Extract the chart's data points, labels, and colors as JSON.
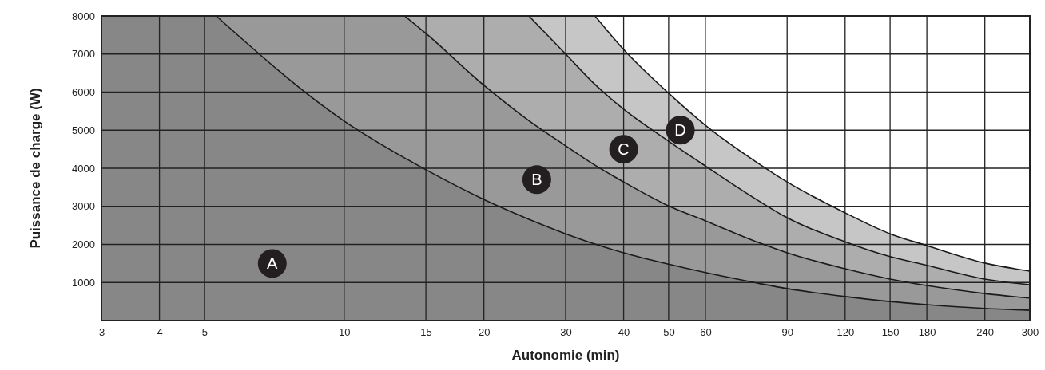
{
  "chart_data": {
    "type": "area",
    "xlabel": "Autonomie (min)",
    "ylabel": "Puissance de charge (W)",
    "log": "x",
    "grid": true,
    "xlim": [
      3,
      300
    ],
    "xticks": [
      3,
      4,
      5,
      10,
      15,
      20,
      30,
      40,
      50,
      60,
      90,
      120,
      150,
      180,
      240,
      300
    ],
    "ylim": [
      0,
      8000
    ],
    "yticks": [
      {
        "value": 0,
        "label": null
      },
      1000,
      2000,
      3000,
      4000,
      5000,
      6000,
      7000,
      8000
    ],
    "x": [
      3,
      5.3,
      10,
      13.5,
      15,
      20,
      25,
      30,
      34.7,
      40,
      50,
      60,
      78,
      90,
      120,
      150,
      180,
      240,
      300
    ],
    "series": [
      {
        "color": "#c6c6c6",
        "values": [
          8000,
          8000,
          8000,
          8000,
          8000,
          8000,
          8000,
          8000,
          8000,
          7120,
          5970,
          5130,
          4130,
          3640,
          2830,
          2280,
          1970,
          1510,
          1300
        ]
      },
      {
        "color": "#adadad",
        "values": [
          8000,
          8000,
          8000,
          8000,
          8000,
          8000,
          8000,
          7000,
          6200,
          5550,
          4710,
          4060,
          3150,
          2700,
          2070,
          1680,
          1450,
          1090,
          940
        ]
      },
      {
        "color": "#999999",
        "values": [
          8000,
          8000,
          8000,
          8000,
          7540,
          6180,
          5250,
          4590,
          4080,
          3640,
          3010,
          2620,
          2050,
          1780,
          1360,
          1090,
          920,
          710,
          590
        ]
      },
      {
        "color": "#878787",
        "values": [
          8000,
          8000,
          5240,
          4270,
          3960,
          3180,
          2660,
          2280,
          2010,
          1780,
          1480,
          1260,
          980,
          840,
          630,
          500,
          420,
          320,
          270
        ]
      }
    ],
    "annotations": [
      {
        "text": "A",
        "x": 7,
        "y": 1500
      },
      {
        "text": "B",
        "x": 26,
        "y": 3700
      },
      {
        "text": "C",
        "x": 40,
        "y": 4500
      },
      {
        "text": "D",
        "x": 53,
        "y": 5000
      }
    ]
  }
}
